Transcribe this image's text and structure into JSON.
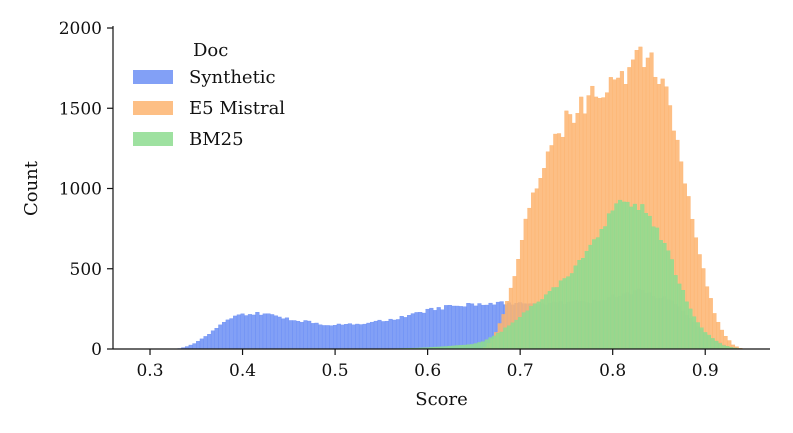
{
  "chart_data": {
    "type": "histogram",
    "xlabel": "Score",
    "ylabel": "Count",
    "xlim": [
      0.26,
      0.97
    ],
    "ylim": [
      0,
      2000
    ],
    "x_ticks": [
      0.3,
      0.4,
      0.5,
      0.6,
      0.7,
      0.8,
      0.9
    ],
    "x_tick_labels": [
      "0.3",
      "0.4",
      "0.5",
      "0.6",
      "0.7",
      "0.8",
      "0.9"
    ],
    "y_ticks": [
      0,
      500,
      1000,
      1500,
      2000
    ],
    "y_tick_labels": [
      "0",
      "500",
      "1000",
      "1500",
      "2000"
    ],
    "bin_width": 0.004,
    "legend": {
      "title": "Doc",
      "position": "top-left"
    },
    "grid": false,
    "series": [
      {
        "name": "Synthetic",
        "color": "#6c8ff5",
        "points": [
          [
            0.33,
            0
          ],
          [
            0.34,
            15
          ],
          [
            0.35,
            40
          ],
          [
            0.36,
            80
          ],
          [
            0.37,
            120
          ],
          [
            0.38,
            165
          ],
          [
            0.39,
            200
          ],
          [
            0.4,
            215
          ],
          [
            0.41,
            220
          ],
          [
            0.42,
            220
          ],
          [
            0.43,
            212
          ],
          [
            0.44,
            200
          ],
          [
            0.45,
            185
          ],
          [
            0.46,
            175
          ],
          [
            0.47,
            170
          ],
          [
            0.48,
            160
          ],
          [
            0.49,
            150
          ],
          [
            0.5,
            150
          ],
          [
            0.51,
            150
          ],
          [
            0.52,
            155
          ],
          [
            0.53,
            160
          ],
          [
            0.54,
            165
          ],
          [
            0.55,
            175
          ],
          [
            0.56,
            180
          ],
          [
            0.57,
            195
          ],
          [
            0.58,
            210
          ],
          [
            0.59,
            225
          ],
          [
            0.6,
            240
          ],
          [
            0.61,
            250
          ],
          [
            0.62,
            260
          ],
          [
            0.63,
            270
          ],
          [
            0.64,
            275
          ],
          [
            0.65,
            280
          ],
          [
            0.66,
            282
          ],
          [
            0.67,
            285
          ],
          [
            0.68,
            285
          ],
          [
            0.69,
            280
          ],
          [
            0.7,
            278
          ],
          [
            0.71,
            280
          ],
          [
            0.72,
            282
          ],
          [
            0.73,
            285
          ],
          [
            0.74,
            285
          ],
          [
            0.75,
            288
          ],
          [
            0.76,
            290
          ],
          [
            0.77,
            292
          ],
          [
            0.78,
            300
          ],
          [
            0.79,
            310
          ],
          [
            0.8,
            325
          ],
          [
            0.81,
            345
          ],
          [
            0.82,
            355
          ],
          [
            0.83,
            360
          ],
          [
            0.84,
            345
          ],
          [
            0.85,
            325
          ],
          [
            0.86,
            305
          ],
          [
            0.87,
            270
          ],
          [
            0.88,
            215
          ],
          [
            0.89,
            155
          ],
          [
            0.9,
            95
          ],
          [
            0.91,
            55
          ],
          [
            0.92,
            25
          ],
          [
            0.93,
            8
          ],
          [
            0.94,
            0
          ]
        ]
      },
      {
        "name": "E5 Mistral",
        "color": "#fdb470",
        "points": [
          [
            0.66,
            0
          ],
          [
            0.67,
            60
          ],
          [
            0.68,
            180
          ],
          [
            0.69,
            370
          ],
          [
            0.7,
            620
          ],
          [
            0.71,
            880
          ],
          [
            0.72,
            1080
          ],
          [
            0.73,
            1200
          ],
          [
            0.74,
            1320
          ],
          [
            0.75,
            1420
          ],
          [
            0.76,
            1470
          ],
          [
            0.77,
            1530
          ],
          [
            0.78,
            1580
          ],
          [
            0.79,
            1620
          ],
          [
            0.8,
            1660
          ],
          [
            0.81,
            1700
          ],
          [
            0.82,
            1750
          ],
          [
            0.83,
            1820
          ],
          [
            0.84,
            1800
          ],
          [
            0.85,
            1700
          ],
          [
            0.86,
            1530
          ],
          [
            0.87,
            1300
          ],
          [
            0.88,
            1000
          ],
          [
            0.89,
            700
          ],
          [
            0.9,
            430
          ],
          [
            0.91,
            220
          ],
          [
            0.92,
            90
          ],
          [
            0.93,
            25
          ],
          [
            0.94,
            0
          ]
        ]
      },
      {
        "name": "BM25",
        "color": "#8ddc8f",
        "points": [
          [
            0.55,
            0
          ],
          [
            0.57,
            3
          ],
          [
            0.59,
            6
          ],
          [
            0.61,
            12
          ],
          [
            0.63,
            20
          ],
          [
            0.65,
            30
          ],
          [
            0.66,
            45
          ],
          [
            0.67,
            75
          ],
          [
            0.68,
            110
          ],
          [
            0.69,
            155
          ],
          [
            0.7,
            205
          ],
          [
            0.71,
            255
          ],
          [
            0.72,
            300
          ],
          [
            0.73,
            350
          ],
          [
            0.74,
            400
          ],
          [
            0.75,
            455
          ],
          [
            0.76,
            510
          ],
          [
            0.77,
            580
          ],
          [
            0.78,
            660
          ],
          [
            0.79,
            760
          ],
          [
            0.8,
            840
          ],
          [
            0.81,
            910
          ],
          [
            0.82,
            920
          ],
          [
            0.83,
            880
          ],
          [
            0.84,
            810
          ],
          [
            0.85,
            720
          ],
          [
            0.86,
            600
          ],
          [
            0.87,
            450
          ],
          [
            0.88,
            300
          ],
          [
            0.89,
            185
          ],
          [
            0.9,
            105
          ],
          [
            0.91,
            55
          ],
          [
            0.92,
            22
          ],
          [
            0.93,
            8
          ],
          [
            0.94,
            0
          ]
        ]
      }
    ]
  }
}
